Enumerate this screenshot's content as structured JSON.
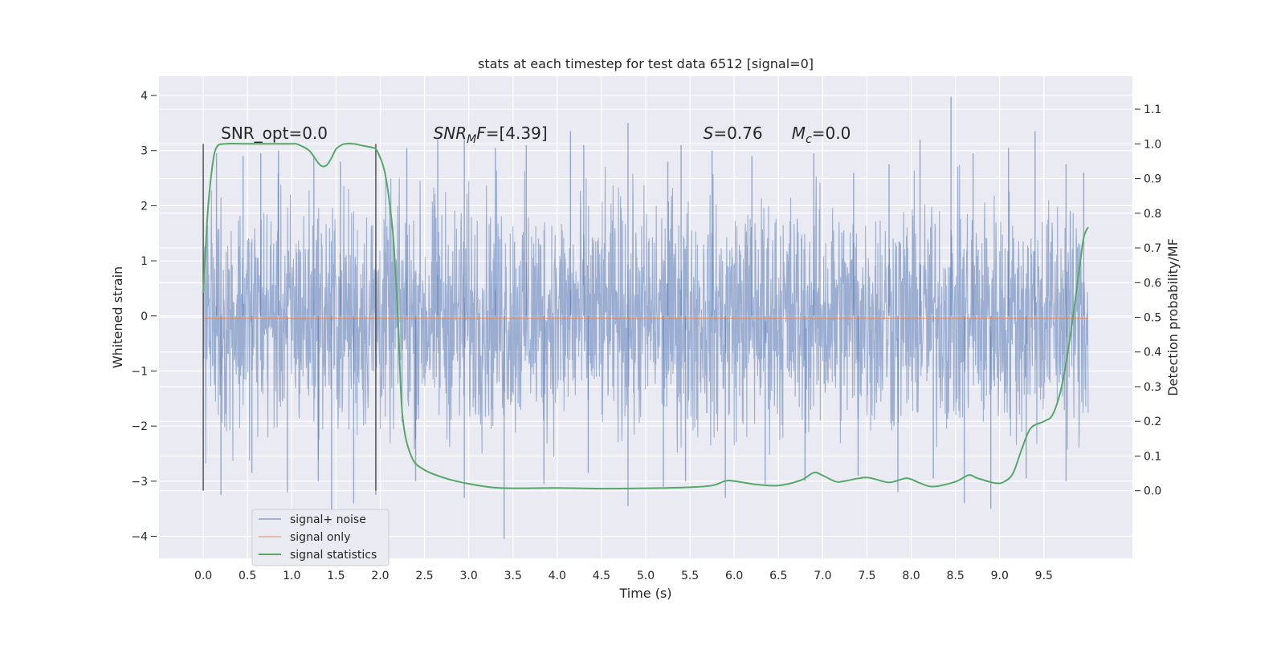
{
  "chart_data": {
    "type": "line",
    "title": "stats at each timestep for test data 6512 [signal=0]",
    "xlabel": "Time (s)",
    "ylabel_left": "Whitened strain",
    "ylabel_right": "Detection probability/MF",
    "xlim": [
      -0.5,
      10.5
    ],
    "ylim_left": [
      -4.4,
      4.35
    ],
    "ylim_right": [
      -0.195,
      1.195
    ],
    "x_ticks": [
      "0.0",
      "0.5",
      "1.0",
      "1.5",
      "2.0",
      "2.5",
      "3.0",
      "3.5",
      "4.0",
      "4.5",
      "5.0",
      "5.5",
      "6.0",
      "6.5",
      "7.0",
      "7.5",
      "8.0",
      "8.5",
      "9.0",
      "9.5"
    ],
    "y_left_ticks": [
      "4",
      "3",
      "2",
      "1",
      "0",
      "−1",
      "−2",
      "−3",
      "−4"
    ],
    "y_right_ticks": [
      "1.1",
      "1.0",
      "0.9",
      "0.8",
      "0.7",
      "0.6",
      "0.5",
      "0.4",
      "0.3",
      "0.2",
      "0.1",
      "0.0"
    ],
    "grid": true,
    "legend_position": "lower-left",
    "annotations": [
      {
        "text": "SNR_opt=0.0",
        "x": 0.2,
        "y_right": 1.015
      },
      {
        "text": "SNR_M F=[4.39]",
        "x": 2.6,
        "y_right": 1.015
      },
      {
        "text": "S=0.76",
        "x": 5.65,
        "y_right": 1.015
      },
      {
        "text": "M_c=0.0",
        "x": 6.65,
        "y_right": 1.015
      }
    ],
    "window_markers": {
      "x": [
        0.0,
        1.95
      ],
      "y_right_range": [
        0.0,
        1.0
      ]
    },
    "series": [
      {
        "name": "signal+ noise",
        "color": "#4c72b0",
        "axis": "left",
        "x_range": [
          0.0,
          10.0
        ],
        "description_values": {
          "core_amplitude": 1.3,
          "max": 3.98,
          "min": -4.05
        },
        "spikes_high": [
          [
            0.15,
            2.95
          ],
          [
            0.45,
            2.9
          ],
          [
            0.65,
            2.95
          ],
          [
            0.85,
            3.0
          ],
          [
            1.25,
            2.9
          ],
          [
            1.55,
            2.8
          ],
          [
            2.3,
            3.05
          ],
          [
            2.65,
            3.2
          ],
          [
            2.95,
            3.25
          ],
          [
            3.3,
            3.05
          ],
          [
            3.65,
            3.1
          ],
          [
            4.15,
            3.35
          ],
          [
            4.3,
            3.1
          ],
          [
            4.8,
            3.5
          ],
          [
            5.25,
            2.8
          ],
          [
            5.4,
            3.1
          ],
          [
            5.75,
            3.0
          ],
          [
            6.2,
            2.9
          ],
          [
            6.9,
            2.95
          ],
          [
            7.35,
            2.6
          ],
          [
            7.75,
            2.75
          ],
          [
            8.1,
            3.2
          ],
          [
            8.45,
            3.98
          ],
          [
            8.7,
            2.95
          ],
          [
            9.1,
            3.05
          ],
          [
            9.4,
            3.35
          ],
          [
            9.75,
            2.75
          ],
          [
            9.95,
            2.6
          ]
        ],
        "spikes_low": [
          [
            0.2,
            -3.25
          ],
          [
            0.55,
            -2.85
          ],
          [
            0.95,
            -3.2
          ],
          [
            1.3,
            -3.0
          ],
          [
            1.45,
            -3.6
          ],
          [
            1.7,
            -3.4
          ],
          [
            1.95,
            -3.25
          ],
          [
            2.4,
            -3.0
          ],
          [
            2.95,
            -3.3
          ],
          [
            3.4,
            -4.05
          ],
          [
            3.85,
            -3.05
          ],
          [
            4.35,
            -2.85
          ],
          [
            4.8,
            -3.45
          ],
          [
            5.2,
            -3.1
          ],
          [
            5.45,
            -3.0
          ],
          [
            5.9,
            -3.3
          ],
          [
            6.35,
            -3.05
          ],
          [
            6.8,
            -3.0
          ],
          [
            7.4,
            -2.9
          ],
          [
            7.85,
            -3.2
          ],
          [
            8.25,
            -2.95
          ],
          [
            8.6,
            -3.4
          ],
          [
            8.9,
            -3.5
          ],
          [
            9.3,
            -2.95
          ],
          [
            9.75,
            -3.0
          ]
        ]
      },
      {
        "name": "signal only",
        "color": "#dd8452",
        "axis": "left",
        "x": [
          0.0,
          10.0
        ],
        "y": [
          -0.04,
          -0.04
        ]
      },
      {
        "name": "signal statistics",
        "color": "#55a868",
        "axis": "right",
        "x": [
          0.0,
          0.05,
          0.1,
          0.15,
          0.25,
          0.5,
          0.75,
          1.0,
          1.05,
          1.1,
          1.2,
          1.3,
          1.35,
          1.4,
          1.45,
          1.5,
          1.55,
          1.6,
          1.7,
          1.8,
          1.9,
          1.95,
          2.0,
          2.05,
          2.1,
          2.15,
          2.2,
          2.25,
          2.35,
          2.5,
          2.75,
          3.0,
          3.25,
          3.5,
          4.0,
          4.5,
          5.0,
          5.5,
          5.75,
          5.9,
          6.0,
          6.25,
          6.5,
          6.75,
          6.9,
          7.0,
          7.15,
          7.25,
          7.5,
          7.75,
          7.95,
          8.1,
          8.25,
          8.5,
          8.65,
          8.75,
          8.95,
          9.05,
          9.15,
          9.25,
          9.35,
          9.5,
          9.6,
          9.7,
          9.8,
          9.9,
          9.95,
          10.0
        ],
        "y": [
          0.57,
          0.8,
          0.93,
          0.99,
          1.0,
          1.0,
          1.0,
          1.0,
          1.0,
          0.995,
          0.98,
          0.945,
          0.935,
          0.94,
          0.96,
          0.985,
          0.995,
          1.0,
          1.0,
          0.995,
          0.99,
          0.985,
          0.96,
          0.92,
          0.84,
          0.72,
          0.5,
          0.22,
          0.1,
          0.06,
          0.035,
          0.02,
          0.01,
          0.007,
          0.008,
          0.006,
          0.007,
          0.01,
          0.015,
          0.028,
          0.028,
          0.018,
          0.015,
          0.03,
          0.052,
          0.044,
          0.026,
          0.028,
          0.038,
          0.024,
          0.036,
          0.022,
          0.012,
          0.026,
          0.045,
          0.036,
          0.022,
          0.026,
          0.05,
          0.12,
          0.18,
          0.2,
          0.22,
          0.3,
          0.45,
          0.64,
          0.73,
          0.76
        ]
      }
    ]
  }
}
